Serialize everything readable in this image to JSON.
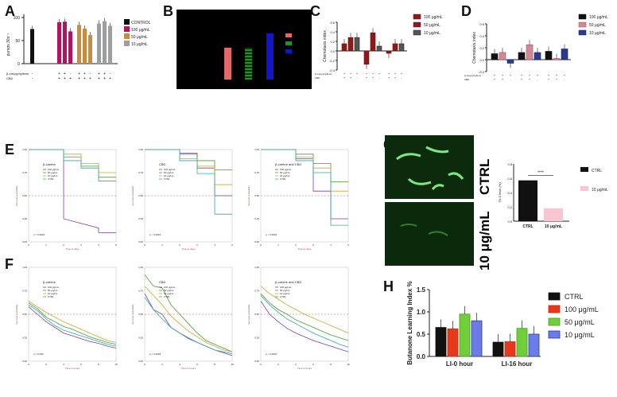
{
  "panel_labels": {
    "A": "A",
    "B": "B",
    "C": "C",
    "D": "D",
    "E": "E",
    "F": "F",
    "G": "G",
    "H": "H"
  },
  "colors": {
    "ctrl": "#111111",
    "c100": "#b01560",
    "c50": "#c98c3a",
    "c10": "#9e9e9e",
    "red": "#8b1a1a",
    "pink": "#d08a96",
    "navy": "#2a3a8c",
    "purple": "#7a3fb0",
    "green": "#4e9a2e",
    "yellow": "#c7a728",
    "teal": "#2fa8a8"
  },
  "micro_g": {
    "ctrl_label": "CTRL",
    "dose_label": "10 μg/mL"
  },
  "chart_data": [
    {
      "id": "A",
      "type": "bar",
      "ylabel": "pumps 30s⁻¹",
      "yticks": [
        "0",
        "50",
        "100"
      ],
      "ylim": [
        0,
        100
      ],
      "legend": [
        "CONTROL",
        "100 μg/mL",
        "50 μg/mL",
        "10 μg/mL"
      ],
      "row_labels": [
        "β-caryophyllene",
        "CBD"
      ],
      "groups": [
        {
          "name": "CONTROL",
          "values": [
            75
          ],
          "rows": [
            [
              "-"
            ],
            [
              "-"
            ]
          ]
        },
        {
          "name": "100 μg/mL",
          "values": [
            90,
            91,
            70
          ],
          "rows": [
            [
              "+",
              "+",
              "-"
            ],
            [
              "+",
              "+",
              "+"
            ]
          ]
        },
        {
          "name": "50 μg/mL",
          "values": [
            84,
            76,
            62
          ],
          "rows": [
            [
              "+",
              "+",
              "-"
            ],
            [
              "+",
              "+",
              "+"
            ]
          ]
        },
        {
          "name": "10 μg/mL",
          "values": [
            87,
            92,
            82
          ],
          "rows": [
            [
              "+",
              "+",
              "-"
            ],
            [
              "+",
              "+",
              "+"
            ]
          ]
        }
      ]
    },
    {
      "id": "C",
      "type": "bar",
      "ylabel": "Chemotaxis index",
      "yticks": [
        "0.6",
        "0.4",
        "0.2",
        "0.0",
        "-0.2",
        "-0.4"
      ],
      "ylim": [
        -0.4,
        0.6
      ],
      "legend": [
        "100 μg/mL",
        "50 μg/mL",
        "10 μg/mL"
      ],
      "row_labels": [
        "β-caryophyllene",
        "CBD"
      ],
      "values": [
        0.15,
        0.28,
        0.28,
        -0.28,
        0.38,
        0.1,
        -0.05,
        0.15,
        0.15
      ]
    },
    {
      "id": "D",
      "type": "bar",
      "ylabel": "Chemotaxis index",
      "yticks": [
        "0.6",
        "0.4",
        "0.2",
        "0.0",
        "-0.2"
      ],
      "ylim": [
        -0.2,
        0.6
      ],
      "legend": [
        "100 μg/mL",
        "50 μg/mL",
        "10 μg/mL"
      ],
      "row_labels": [
        "β-caryophyllene",
        "CBD"
      ],
      "values": [
        0.1,
        0.12,
        -0.06,
        0.12,
        0.25,
        0.12,
        0.14,
        0.02,
        0.18
      ]
    },
    {
      "id": "E",
      "type": "line",
      "ylabel": "Survival probability",
      "xlabel": "Time in days",
      "yticks": [
        "1.00",
        "0.75",
        "0.50",
        "0.25",
        "0.00"
      ],
      "xticks": [
        "0",
        "1",
        "2",
        "3",
        "4",
        "5"
      ],
      "subplots": [
        {
          "title": "β-carene",
          "p": "p < 0.0001",
          "legend": [
            "100 μg/mL",
            "50 μg/mL",
            "10 μg/mL",
            "CTRL"
          ],
          "series": [
            {
              "x": [
                0,
                2,
                2,
                4,
                4,
                5
              ],
              "y": [
                1,
                1,
                0.25,
                0.15,
                0.1,
                0.1
              ]
            },
            {
              "x": [
                0,
                2,
                2,
                3,
                3,
                4,
                4,
                5
              ],
              "y": [
                1,
                1,
                0.92,
                0.92,
                0.82,
                0.82,
                0.7,
                0.7
              ]
            },
            {
              "x": [
                0,
                2,
                2,
                3,
                3,
                4,
                4,
                5
              ],
              "y": [
                1,
                1,
                0.95,
                0.95,
                0.85,
                0.85,
                0.75,
                0.75
              ]
            },
            {
              "x": [
                0,
                2,
                2,
                3,
                3,
                4,
                4,
                5
              ],
              "y": [
                1,
                1,
                0.88,
                0.88,
                0.8,
                0.8,
                0.66,
                0.66
              ]
            }
          ]
        },
        {
          "title": "CBD",
          "p": "p < 0.0001",
          "legend": [
            "100 μg/mL",
            "50 μg/mL",
            "10 μg/mL",
            "CTRL"
          ],
          "series": [
            {
              "x": [
                0,
                2,
                2,
                3,
                3,
                4,
                4,
                5
              ],
              "y": [
                1,
                1,
                0.96,
                0.96,
                0.8,
                0.8,
                0.5,
                0.5
              ]
            },
            {
              "x": [
                0,
                2,
                2,
                3,
                3,
                4,
                4,
                5
              ],
              "y": [
                1,
                1,
                0.95,
                0.95,
                0.88,
                0.88,
                0.78,
                0.78
              ]
            },
            {
              "x": [
                0,
                2,
                2,
                3,
                3,
                4,
                4,
                5
              ],
              "y": [
                1,
                1,
                0.9,
                0.9,
                0.82,
                0.82,
                0.62,
                0.62
              ]
            },
            {
              "x": [
                0,
                2,
                2,
                3,
                3,
                4,
                4,
                5
              ],
              "y": [
                1,
                1,
                0.88,
                0.88,
                0.74,
                0.74,
                0.3,
                0.3
              ]
            }
          ]
        },
        {
          "title": "β-carene and CBD",
          "p": "p < 0.0001",
          "legend": [
            "100 μg/mL",
            "50 μg/mL",
            "10 μg/mL",
            "CTRL"
          ],
          "series": [
            {
              "x": [
                0,
                2,
                2,
                3,
                3,
                4,
                4,
                5
              ],
              "y": [
                1,
                1,
                0.9,
                0.9,
                0.55,
                0.55,
                0.25,
                0.25
              ]
            },
            {
              "x": [
                0,
                2,
                2,
                3,
                3,
                4,
                4,
                5
              ],
              "y": [
                1,
                1,
                0.95,
                0.95,
                0.85,
                0.85,
                0.65,
                0.65
              ]
            },
            {
              "x": [
                0,
                2,
                2,
                3,
                3,
                4,
                4,
                5
              ],
              "y": [
                1,
                1,
                0.92,
                0.92,
                0.8,
                0.8,
                0.55,
                0.55
              ]
            },
            {
              "x": [
                0,
                2,
                2,
                3,
                3,
                4,
                4,
                5
              ],
              "y": [
                1,
                1,
                0.88,
                0.88,
                0.75,
                0.75,
                0.18,
                0.18
              ]
            }
          ]
        }
      ]
    },
    {
      "id": "F",
      "type": "line",
      "ylabel": "Survival probability",
      "xlabel": "Time in hours",
      "yticks": [
        "1.00",
        "0.75",
        "0.50",
        "0.25",
        "0.00"
      ],
      "xticks": [
        "0",
        "2",
        "4",
        "6",
        "8",
        "10"
      ],
      "subplots": [
        {
          "title": "β-carene",
          "p": "p = 0.004",
          "legend": [
            "100 μg/mL",
            "50 μg/mL",
            "10 μg/mL",
            "CTRL"
          ],
          "series": [
            {
              "x": [
                0,
                1,
                2,
                3,
                4,
                5,
                6,
                7,
                8,
                9,
                10
              ],
              "y": [
                0.58,
                0.5,
                0.42,
                0.36,
                0.3,
                0.27,
                0.24,
                0.21,
                0.19,
                0.16,
                0.14
              ]
            },
            {
              "x": [
                0,
                1,
                2,
                3,
                4,
                5,
                6,
                7,
                8,
                9,
                10
              ],
              "y": [
                0.62,
                0.56,
                0.47,
                0.42,
                0.37,
                0.34,
                0.3,
                0.26,
                0.23,
                0.2,
                0.18
              ]
            },
            {
              "x": [
                0,
                1,
                2,
                3,
                4,
                5,
                6,
                7,
                8,
                9,
                10
              ],
              "y": [
                0.64,
                0.58,
                0.52,
                0.47,
                0.42,
                0.38,
                0.34,
                0.3,
                0.26,
                0.22,
                0.2
              ]
            },
            {
              "x": [
                0,
                1,
                2,
                3,
                4,
                5,
                6,
                7,
                8,
                9,
                10
              ],
              "y": [
                0.6,
                0.54,
                0.45,
                0.38,
                0.33,
                0.3,
                0.27,
                0.24,
                0.21,
                0.18,
                0.16
              ]
            }
          ]
        },
        {
          "title": "CBD",
          "p": "p = 0.0003",
          "legend": [
            "100 μg/mL",
            "50 μg/mL",
            "10 μg/mL",
            "CTRL"
          ],
          "series": [
            {
              "x": [
                0,
                1,
                2,
                3,
                4,
                5,
                6,
                7,
                8,
                9,
                10
              ],
              "y": [
                0.72,
                0.55,
                0.5,
                0.36,
                0.3,
                0.24,
                0.2,
                0.16,
                0.12,
                0.09,
                0.06
              ]
            },
            {
              "x": [
                0,
                1,
                2,
                3,
                4,
                5,
                6,
                7,
                8,
                9,
                10
              ],
              "y": [
                0.92,
                0.8,
                0.78,
                0.6,
                0.5,
                0.4,
                0.3,
                0.22,
                0.18,
                0.14,
                0.1
              ]
            },
            {
              "x": [
                0,
                1,
                2,
                3,
                4,
                5,
                6,
                7,
                8,
                9,
                10
              ],
              "y": [
                0.8,
                0.7,
                0.6,
                0.48,
                0.4,
                0.32,
                0.26,
                0.2,
                0.16,
                0.12,
                0.1
              ]
            },
            {
              "x": [
                0,
                1,
                2,
                3,
                4,
                5,
                6,
                7,
                8,
                9,
                10
              ],
              "y": [
                0.68,
                0.55,
                0.45,
                0.36,
                0.3,
                0.25,
                0.2,
                0.16,
                0.12,
                0.1,
                0.08
              ]
            }
          ]
        },
        {
          "title": "β-carene and CBD",
          "p": "p < 0.0001",
          "legend": [
            "100 μg/mL",
            "50 μg/mL",
            "10 μg/mL",
            "CTRL"
          ],
          "series": [
            {
              "x": [
                0,
                1,
                2,
                3,
                4,
                5,
                6,
                7,
                8,
                9,
                10
              ],
              "y": [
                0.64,
                0.5,
                0.42,
                0.35,
                0.3,
                0.26,
                0.22,
                0.19,
                0.16,
                0.13,
                0.1
              ]
            },
            {
              "x": [
                0,
                1,
                2,
                3,
                4,
                5,
                6,
                7,
                8,
                9,
                10
              ],
              "y": [
                0.72,
                0.62,
                0.55,
                0.5,
                0.44,
                0.4,
                0.36,
                0.32,
                0.28,
                0.25,
                0.22
              ]
            },
            {
              "x": [
                0,
                1,
                2,
                3,
                4,
                5,
                6,
                7,
                8,
                9,
                10
              ],
              "y": [
                0.8,
                0.72,
                0.66,
                0.6,
                0.55,
                0.5,
                0.46,
                0.42,
                0.38,
                0.34,
                0.3
              ]
            },
            {
              "x": [
                0,
                1,
                2,
                3,
                4,
                5,
                6,
                7,
                8,
                9,
                10
              ],
              "y": [
                0.7,
                0.6,
                0.52,
                0.45,
                0.4,
                0.35,
                0.3,
                0.26,
                0.22,
                0.18,
                0.15
              ]
            }
          ]
        }
      ]
    },
    {
      "id": "G",
      "type": "bar",
      "ylabel": "Th-S level (%)",
      "categories": [
        "CTRL",
        "10 μg/mL"
      ],
      "values": [
        0.57,
        0.18
      ],
      "yticks": [
        "0.8",
        "0.6",
        "0.4",
        "0.2",
        "0.0"
      ],
      "ylim": [
        0,
        0.8
      ],
      "legend": [
        "CTRL",
        "10 μg/mL"
      ],
      "significance": "****"
    },
    {
      "id": "H",
      "type": "bar",
      "ylabel": "Butanone Learning Index %",
      "categories": [
        "LI-0 hour",
        "LI-16 hour"
      ],
      "series": [
        {
          "name": "CTRL",
          "values": [
            0.65,
            0.32
          ]
        },
        {
          "name": "100 μg/mL",
          "values": [
            0.62,
            0.33
          ]
        },
        {
          "name": "50 μg/mL",
          "values": [
            0.95,
            0.63
          ]
        },
        {
          "name": "10 μg/mL",
          "values": [
            0.8,
            0.5
          ]
        }
      ],
      "yticks": [
        "0.0",
        "0.5",
        "1.0",
        "1.5"
      ],
      "ylim": [
        0,
        1.5
      ]
    }
  ]
}
